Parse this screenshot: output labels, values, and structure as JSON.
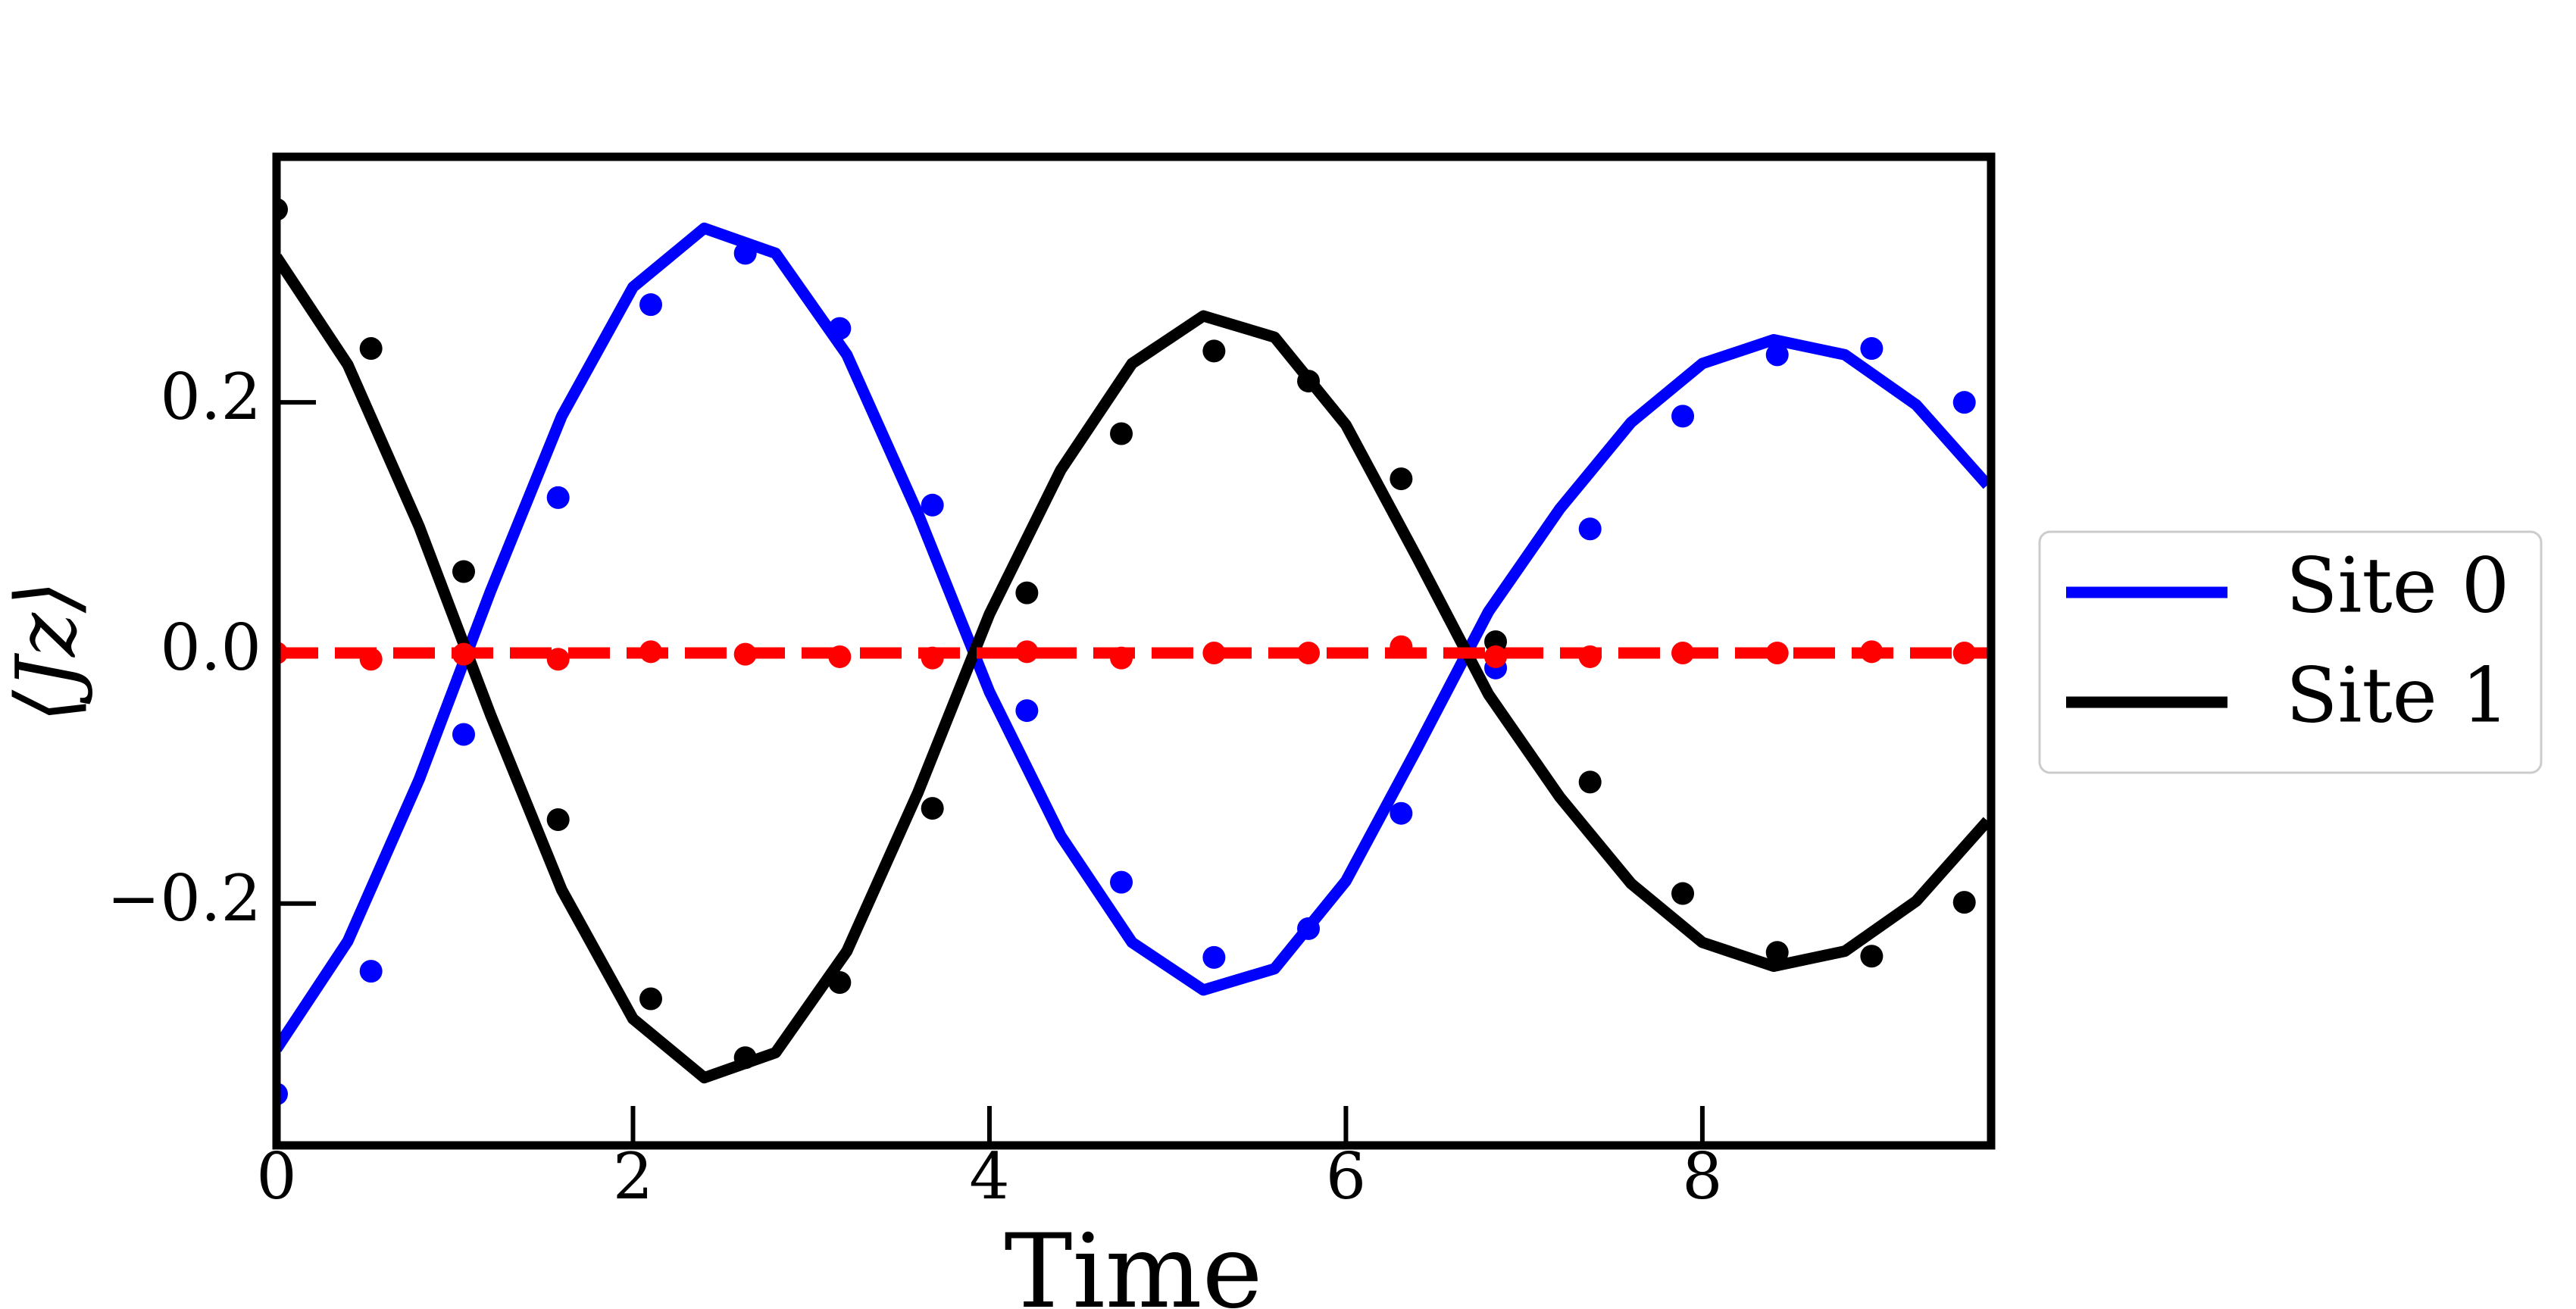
{
  "chart_data": {
    "type": "line",
    "xlabel": "Time",
    "ylabel": "⟨Jz⟩",
    "xlim": [
      0,
      9.62
    ],
    "ylim": [
      -0.393,
      0.396
    ],
    "xticks": [
      0,
      2,
      4,
      6,
      8
    ],
    "yticks": [
      {
        "value": -0.2,
        "label": "−0.2"
      },
      {
        "value": 0,
        "label": "0.0"
      },
      {
        "value": 0.2,
        "label": "0.2"
      }
    ],
    "legend": "right",
    "x": [
      0,
      0.4,
      0.8,
      1.2,
      1.6,
      2.0,
      2.4,
      2.8,
      3.2,
      3.6,
      4.0,
      4.4,
      4.8,
      5.2,
      5.6,
      6.0,
      6.4,
      6.8,
      7.2,
      7.6,
      8.0,
      8.4,
      8.8,
      9.2,
      9.6
    ],
    "series": [
      {
        "name": "Site 0",
        "color": "#0000ff",
        "values": [
          -0.316,
          -0.23,
          -0.101,
          0.049,
          0.189,
          0.292,
          0.339,
          0.319,
          0.238,
          0.111,
          -0.031,
          -0.146,
          -0.231,
          -0.269,
          -0.252,
          -0.182,
          -0.076,
          0.033,
          0.115,
          0.184,
          0.231,
          0.25,
          0.238,
          0.198,
          0.134
        ]
      },
      {
        "name": "Site 1",
        "color": "#000000",
        "values": [
          0.316,
          0.23,
          0.101,
          -0.049,
          -0.189,
          -0.292,
          -0.339,
          -0.319,
          -0.238,
          -0.111,
          0.031,
          0.146,
          0.231,
          0.269,
          0.252,
          0.182,
          0.076,
          -0.033,
          -0.115,
          -0.184,
          -0.231,
          -0.25,
          -0.238,
          -0.198,
          -0.134
        ]
      },
      {
        "color": "#ff0000",
        "dash": true,
        "values": [
          0,
          0,
          0,
          0,
          0,
          0,
          0,
          0,
          0,
          0,
          0,
          0,
          0,
          0,
          0,
          0,
          0,
          0,
          0,
          0,
          0,
          0,
          0,
          0,
          0
        ]
      }
    ],
    "points": {
      "x": [
        0,
        0.53,
        1.05,
        1.58,
        2.1,
        2.63,
        3.16,
        3.68,
        4.21,
        4.74,
        5.26,
        5.79,
        6.31,
        6.84,
        7.37,
        7.89,
        8.42,
        8.95,
        9.47
      ],
      "series": [
        {
          "color": "#0000ff",
          "values": [
            -0.352,
            -0.254,
            -0.065,
            0.124,
            0.278,
            0.319,
            0.259,
            0.118,
            -0.046,
            -0.183,
            -0.243,
            -0.22,
            -0.128,
            -0.012,
            0.099,
            0.189,
            0.238,
            0.243,
            0.2
          ]
        },
        {
          "color": "#000000",
          "values": [
            0.354,
            0.243,
            0.065,
            -0.133,
            -0.276,
            -0.323,
            -0.263,
            -0.124,
            0.048,
            0.175,
            0.241,
            0.217,
            0.139,
            0.009,
            -0.103,
            -0.192,
            -0.239,
            -0.242,
            -0.199
          ]
        },
        {
          "color": "#ff0000",
          "values": [
            0,
            -0.005,
            -0.001,
            -0.005,
            0.001,
            -0.001,
            -0.003,
            -0.004,
            0.001,
            -0.004,
            0,
            0,
            0.005,
            -0.003,
            -0.003,
            0,
            0,
            0.001,
            0
          ]
        }
      ]
    }
  }
}
